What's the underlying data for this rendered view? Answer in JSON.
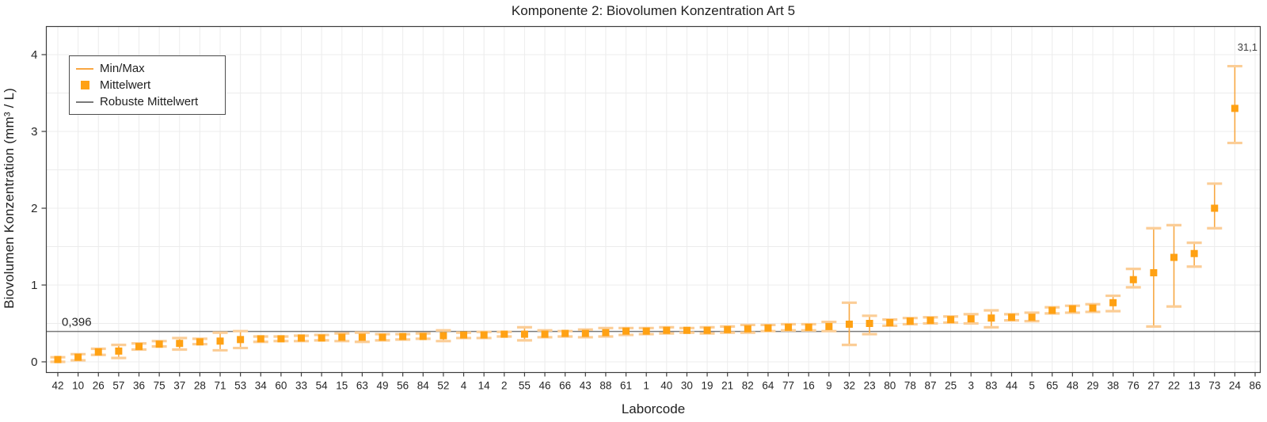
{
  "chart": {
    "title": "Komponente 2: Biovolumen Konzentration Art 5",
    "xlabel": "Laborcode",
    "ylabel": "Biovolumen Konzentration  (mm³ / L)",
    "legend": [
      {
        "label": "Min/Max",
        "marker": "line",
        "color": "#F9A743"
      },
      {
        "label": "Mittelwert",
        "marker": "square",
        "color": "#FFA113"
      },
      {
        "label": "Robuste Mittelwert",
        "marker": "line",
        "color": "#7A7A7A"
      }
    ],
    "colors": {
      "mean_square": "#FFA113",
      "whisker_line": "#F7A843",
      "whisker_cap": "#FBCD96",
      "robust_line": "#7A7A7A",
      "grid": "#ECECEC",
      "border": "#3C3C3C",
      "text": "#262626"
    },
    "annotations": {
      "robust_mean_label": "0,396",
      "clipped_value_label": "31,1",
      "clipped_category": "86"
    }
  },
  "chart_data": {
    "type": "scatter",
    "title": "Komponente 2: Biovolumen Konzentration Art 5",
    "xlabel": "Laborcode",
    "ylabel": "Biovolumen Konzentration (mm3/L)",
    "legend_position": "top-left",
    "grid": "on",
    "y_ticks": [
      0,
      1,
      2,
      3,
      4
    ],
    "y_grid_step": 0.5,
    "ylim": [
      -0.15,
      4.35
    ],
    "robust_mean": 0.396,
    "categories": [
      "42",
      "10",
      "26",
      "57",
      "36",
      "75",
      "37",
      "28",
      "71",
      "53",
      "34",
      "60",
      "33",
      "54",
      "15",
      "63",
      "49",
      "56",
      "84",
      "52",
      "4",
      "14",
      "2",
      "55",
      "46",
      "66",
      "43",
      "88",
      "61",
      "1",
      "40",
      "30",
      "19",
      "21",
      "82",
      "64",
      "77",
      "16",
      "9",
      "32",
      "23",
      "80",
      "78",
      "87",
      "25",
      "3",
      "83",
      "44",
      "5",
      "65",
      "48",
      "29",
      "38",
      "76",
      "27",
      "22",
      "13",
      "73",
      "24",
      "86"
    ],
    "series": [
      {
        "name": "Mittelwert",
        "values": [
          0.03,
          0.06,
          0.13,
          0.14,
          0.2,
          0.23,
          0.24,
          0.26,
          0.27,
          0.29,
          0.3,
          0.3,
          0.31,
          0.31,
          0.32,
          0.32,
          0.32,
          0.33,
          0.33,
          0.34,
          0.35,
          0.35,
          0.36,
          0.36,
          0.36,
          0.37,
          0.37,
          0.38,
          0.4,
          0.4,
          0.41,
          0.41,
          0.41,
          0.42,
          0.43,
          0.44,
          0.45,
          0.45,
          0.46,
          0.49,
          0.5,
          0.51,
          0.53,
          0.54,
          0.55,
          0.56,
          0.57,
          0.58,
          0.58,
          0.67,
          0.69,
          0.7,
          0.77,
          1.07,
          1.16,
          1.36,
          1.41,
          2.0,
          3.3,
          31.1
        ]
      },
      {
        "name": "Min",
        "values": [
          0.0,
          0.02,
          0.09,
          0.05,
          0.16,
          0.2,
          0.16,
          0.23,
          0.15,
          0.18,
          0.26,
          0.27,
          0.27,
          0.28,
          0.27,
          0.26,
          0.28,
          0.29,
          0.3,
          0.27,
          0.31,
          0.31,
          0.33,
          0.28,
          0.32,
          0.33,
          0.32,
          0.33,
          0.35,
          0.36,
          0.37,
          0.38,
          0.37,
          0.38,
          0.38,
          0.4,
          0.41,
          0.41,
          0.4,
          0.22,
          0.36,
          0.47,
          0.49,
          0.5,
          0.51,
          0.5,
          0.45,
          0.54,
          0.53,
          0.63,
          0.64,
          0.65,
          0.66,
          0.97,
          0.46,
          0.72,
          1.24,
          1.74,
          2.85,
          null
        ]
      },
      {
        "name": "Max",
        "values": [
          0.06,
          0.1,
          0.17,
          0.22,
          0.24,
          0.27,
          0.31,
          0.3,
          0.38,
          0.4,
          0.33,
          0.33,
          0.34,
          0.35,
          0.37,
          0.38,
          0.36,
          0.36,
          0.37,
          0.41,
          0.38,
          0.39,
          0.39,
          0.45,
          0.41,
          0.4,
          0.42,
          0.44,
          0.44,
          0.44,
          0.45,
          0.44,
          0.45,
          0.46,
          0.48,
          0.48,
          0.49,
          0.49,
          0.52,
          0.77,
          0.6,
          0.55,
          0.57,
          0.58,
          0.59,
          0.62,
          0.67,
          0.62,
          0.64,
          0.71,
          0.73,
          0.75,
          0.86,
          1.21,
          1.74,
          1.78,
          1.55,
          2.32,
          3.85,
          null
        ]
      }
    ],
    "clipped_annotation": {
      "category": "86",
      "value_label": "31,1"
    }
  }
}
